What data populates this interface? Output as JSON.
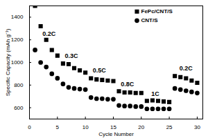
{
  "chart_data": {
    "type": "scatter",
    "x_label": "Cycle Number",
    "y_label": "Specific Capacity (mAh g⁻¹)",
    "x": [
      1,
      2,
      3,
      4,
      5,
      6,
      7,
      8,
      9,
      10,
      11,
      12,
      13,
      14,
      15,
      16,
      17,
      18,
      19,
      20,
      21,
      22,
      23,
      24,
      25,
      26,
      27,
      28,
      29,
      30
    ],
    "series": [
      {
        "name": "FePc/CNT/S",
        "color": "#000000",
        "marker": "square",
        "values": [
          1500,
          1320,
          1200,
          1110,
          1060,
          990,
          985,
          950,
          930,
          910,
          860,
          850,
          845,
          840,
          835,
          745,
          735,
          735,
          730,
          730,
          660,
          665,
          660,
          655,
          650,
          880,
          870,
          860,
          840,
          820
        ]
      },
      {
        "name": "CNT/S",
        "color": "#000000",
        "marker": "circle",
        "values": [
          1110,
          1000,
          960,
          900,
          860,
          810,
          780,
          770,
          765,
          760,
          690,
          680,
          680,
          675,
          675,
          620,
          615,
          615,
          610,
          610,
          590,
          590,
          590,
          590,
          590,
          770,
          760,
          750,
          740,
          730
        ]
      }
    ],
    "annotations": [
      {
        "text": "0.2C",
        "x": 3.5,
        "y": 1250
      },
      {
        "text": "0.3C",
        "x": 7.5,
        "y": 1060
      },
      {
        "text": "0.5C",
        "x": 12.5,
        "y": 930
      },
      {
        "text": "0.8C",
        "x": 17.5,
        "y": 810
      },
      {
        "text": "1C",
        "x": 22.5,
        "y": 720
      },
      {
        "text": "0.2C",
        "x": 28,
        "y": 950
      }
    ],
    "xlim": [
      0,
      31
    ],
    "xticks": [
      0,
      5,
      10,
      15,
      20,
      25,
      30
    ],
    "ylim": [
      500,
      1500
    ],
    "yticks": [
      600,
      800,
      1000,
      1200,
      1400
    ],
    "legend": "top-right"
  }
}
